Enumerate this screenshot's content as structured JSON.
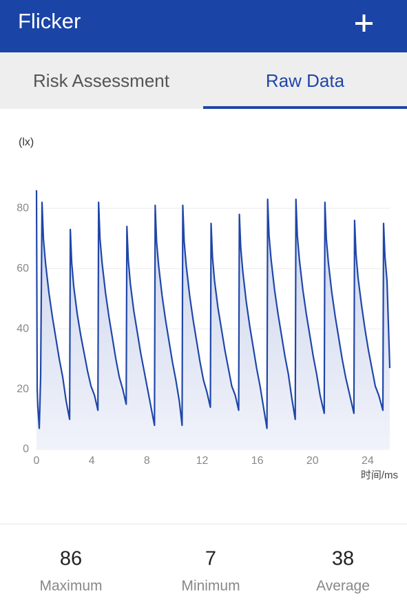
{
  "app_bar": {
    "title": "Flicker"
  },
  "tabs": {
    "items": [
      "Risk Assessment",
      "Raw Data"
    ],
    "selected": 1
  },
  "chart_data": {
    "type": "line",
    "y_label": "(lx)",
    "x_label": "时间/ms",
    "color": "#1f46a8",
    "xlim": [
      0,
      25.6
    ],
    "ylim": [
      0,
      86
    ],
    "xticks": [
      0,
      4,
      8,
      12,
      16,
      20,
      24
    ],
    "yticks": [
      0,
      20,
      40,
      60,
      80
    ],
    "grid": true,
    "x": [
      0,
      0.05,
      0.1,
      0.2,
      0.3,
      0.4,
      0.5,
      0.65,
      0.9,
      1.15,
      1.4,
      1.65,
      1.9,
      2.15,
      2.4,
      2.45,
      2.55,
      2.7,
      2.95,
      3.2,
      3.45,
      3.7,
      3.95,
      4.2,
      4.45,
      4.5,
      4.6,
      4.75,
      5.0,
      5.25,
      5.5,
      5.75,
      6.0,
      6.25,
      6.5,
      6.55,
      6.65,
      6.8,
      7.05,
      7.3,
      7.55,
      7.8,
      8.05,
      8.3,
      8.55,
      8.6,
      8.7,
      8.85,
      9.1,
      9.35,
      9.6,
      9.85,
      10.1,
      10.35,
      10.55,
      10.6,
      10.7,
      10.85,
      11.1,
      11.35,
      11.6,
      11.85,
      12.1,
      12.35,
      12.6,
      12.65,
      12.75,
      12.9,
      13.15,
      13.4,
      13.65,
      13.9,
      14.15,
      14.4,
      14.65,
      14.7,
      14.8,
      14.95,
      15.2,
      15.45,
      15.7,
      15.95,
      16.2,
      16.45,
      16.7,
      16.75,
      16.85,
      17.0,
      17.25,
      17.5,
      17.75,
      18.0,
      18.25,
      18.5,
      18.75,
      18.8,
      18.9,
      19.05,
      19.3,
      19.55,
      19.8,
      20.05,
      20.3,
      20.55,
      20.85,
      20.9,
      21.0,
      21.15,
      21.4,
      21.65,
      21.9,
      22.15,
      22.4,
      22.7,
      23.0,
      23.05,
      23.15,
      23.3,
      23.55,
      23.8,
      24.05,
      24.3,
      24.55,
      24.8,
      25.1,
      25.15,
      25.25,
      25.4,
      25.6
    ],
    "values": [
      86,
      20,
      14,
      7,
      24,
      82,
      70,
      62,
      52,
      44,
      37,
      30,
      24,
      16,
      10,
      73,
      62,
      54,
      45,
      38,
      32,
      26,
      21,
      18,
      13,
      82,
      70,
      62,
      52,
      44,
      37,
      30,
      24,
      20,
      15,
      74,
      63,
      55,
      46,
      39,
      32,
      26,
      20,
      14,
      8,
      81,
      69,
      61,
      51,
      43,
      36,
      29,
      23,
      16,
      8,
      81,
      69,
      61,
      51,
      43,
      36,
      29,
      23,
      19,
      14,
      75,
      64,
      56,
      47,
      40,
      33,
      27,
      21,
      18,
      13,
      78,
      67,
      59,
      49,
      41,
      34,
      27,
      21,
      14,
      7,
      83,
      71,
      63,
      53,
      45,
      38,
      31,
      25,
      17,
      10,
      83,
      71,
      63,
      53,
      45,
      38,
      31,
      25,
      18,
      12,
      82,
      70,
      62,
      52,
      44,
      37,
      30,
      24,
      18,
      12,
      76,
      65,
      57,
      48,
      40,
      33,
      27,
      21,
      18,
      13,
      75,
      64,
      56,
      27
    ]
  },
  "stats": [
    {
      "value": 86,
      "label": "Maximum"
    },
    {
      "value": 7,
      "label": "Minimum"
    },
    {
      "value": 38,
      "label": "Average"
    }
  ]
}
